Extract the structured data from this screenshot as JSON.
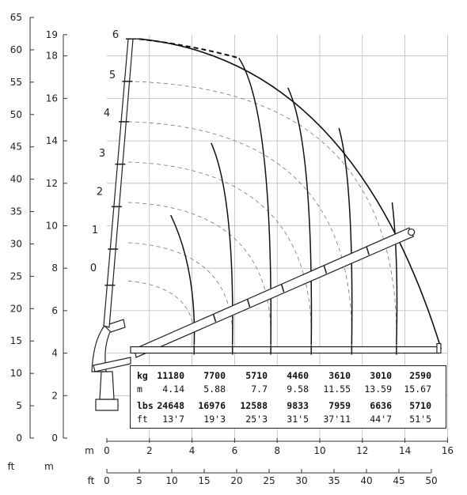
{
  "chart_data": {
    "type": "diagram",
    "axes": {
      "m_left": {
        "unit": "m",
        "ticks": [
          "0",
          "2",
          "4",
          "6",
          "8",
          "10",
          "12",
          "14",
          "16",
          "18",
          "19"
        ]
      },
      "ft_left": {
        "unit": "ft",
        "ticks": [
          "0",
          "5",
          "10",
          "15",
          "20",
          "25",
          "30",
          "35",
          "40",
          "45",
          "50",
          "55",
          "60",
          "65"
        ]
      },
      "m_bottom": {
        "unit": "m",
        "ticks": [
          "0",
          "2",
          "4",
          "6",
          "8",
          "10",
          "12",
          "14",
          "16"
        ]
      },
      "ft_bottom": {
        "unit": "ft",
        "ticks": [
          "0",
          "5",
          "10",
          "15",
          "20",
          "25",
          "30",
          "35",
          "40",
          "45",
          "50"
        ]
      }
    },
    "boom_sections": [
      "0",
      "1",
      "2",
      "3",
      "4",
      "5",
      "6"
    ],
    "load_table": {
      "kg_label": "kg",
      "kg": [
        "11180",
        "7700",
        "5710",
        "4460",
        "3610",
        "3010",
        "2590"
      ],
      "m_label": "m",
      "m": [
        "4.14",
        "5.88",
        "7.7",
        "9.58",
        "11.55",
        "13.59",
        "15.67"
      ],
      "lbs_label": "lbs",
      "lbs": [
        "24648",
        "16976",
        "12588",
        "9833",
        "7959",
        "6636",
        "5710"
      ],
      "ft_label": "ft",
      "ft": [
        "13'7",
        "19'3",
        "25'3",
        "31'5",
        "37'11",
        "44'7",
        "51'5"
      ]
    }
  }
}
